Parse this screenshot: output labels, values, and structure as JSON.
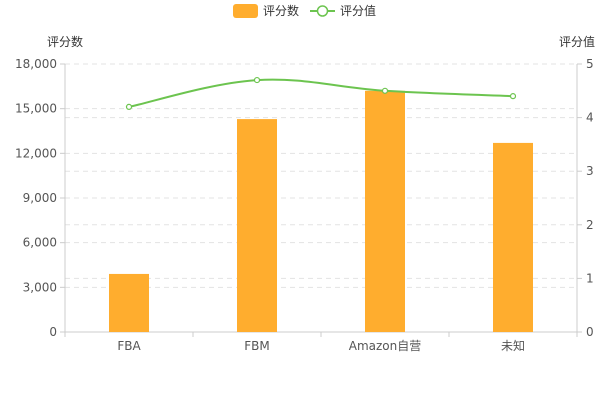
{
  "chart_data": {
    "type": "bar",
    "categories": [
      "FBA",
      "FBM",
      "Amazon自营",
      "未知"
    ],
    "series": [
      {
        "name": "评分数",
        "type": "bar",
        "axis": "left",
        "color": "#ffad2e",
        "values": [
          3900,
          14300,
          16200,
          12700
        ]
      },
      {
        "name": "评分值",
        "type": "line",
        "axis": "right",
        "color": "#6cc44f",
        "values": [
          4.2,
          4.7,
          4.5,
          4.4
        ]
      }
    ],
    "y_left": {
      "label": "评分数",
      "min": 0,
      "max": 18000,
      "ticks": [
        0,
        3000,
        6000,
        9000,
        12000,
        15000,
        18000
      ],
      "tick_labels": [
        "0",
        "3,000",
        "6,000",
        "9,000",
        "12,000",
        "15,000",
        "18,000"
      ]
    },
    "y_right": {
      "label": "评分值",
      "min": 0,
      "max": 5,
      "ticks": [
        0,
        1,
        2,
        3,
        4,
        5
      ],
      "tick_labels": [
        "0",
        "1",
        "2",
        "3",
        "4",
        "5"
      ]
    },
    "legend_position": "top-center",
    "grid": "dashed-horizontal"
  }
}
